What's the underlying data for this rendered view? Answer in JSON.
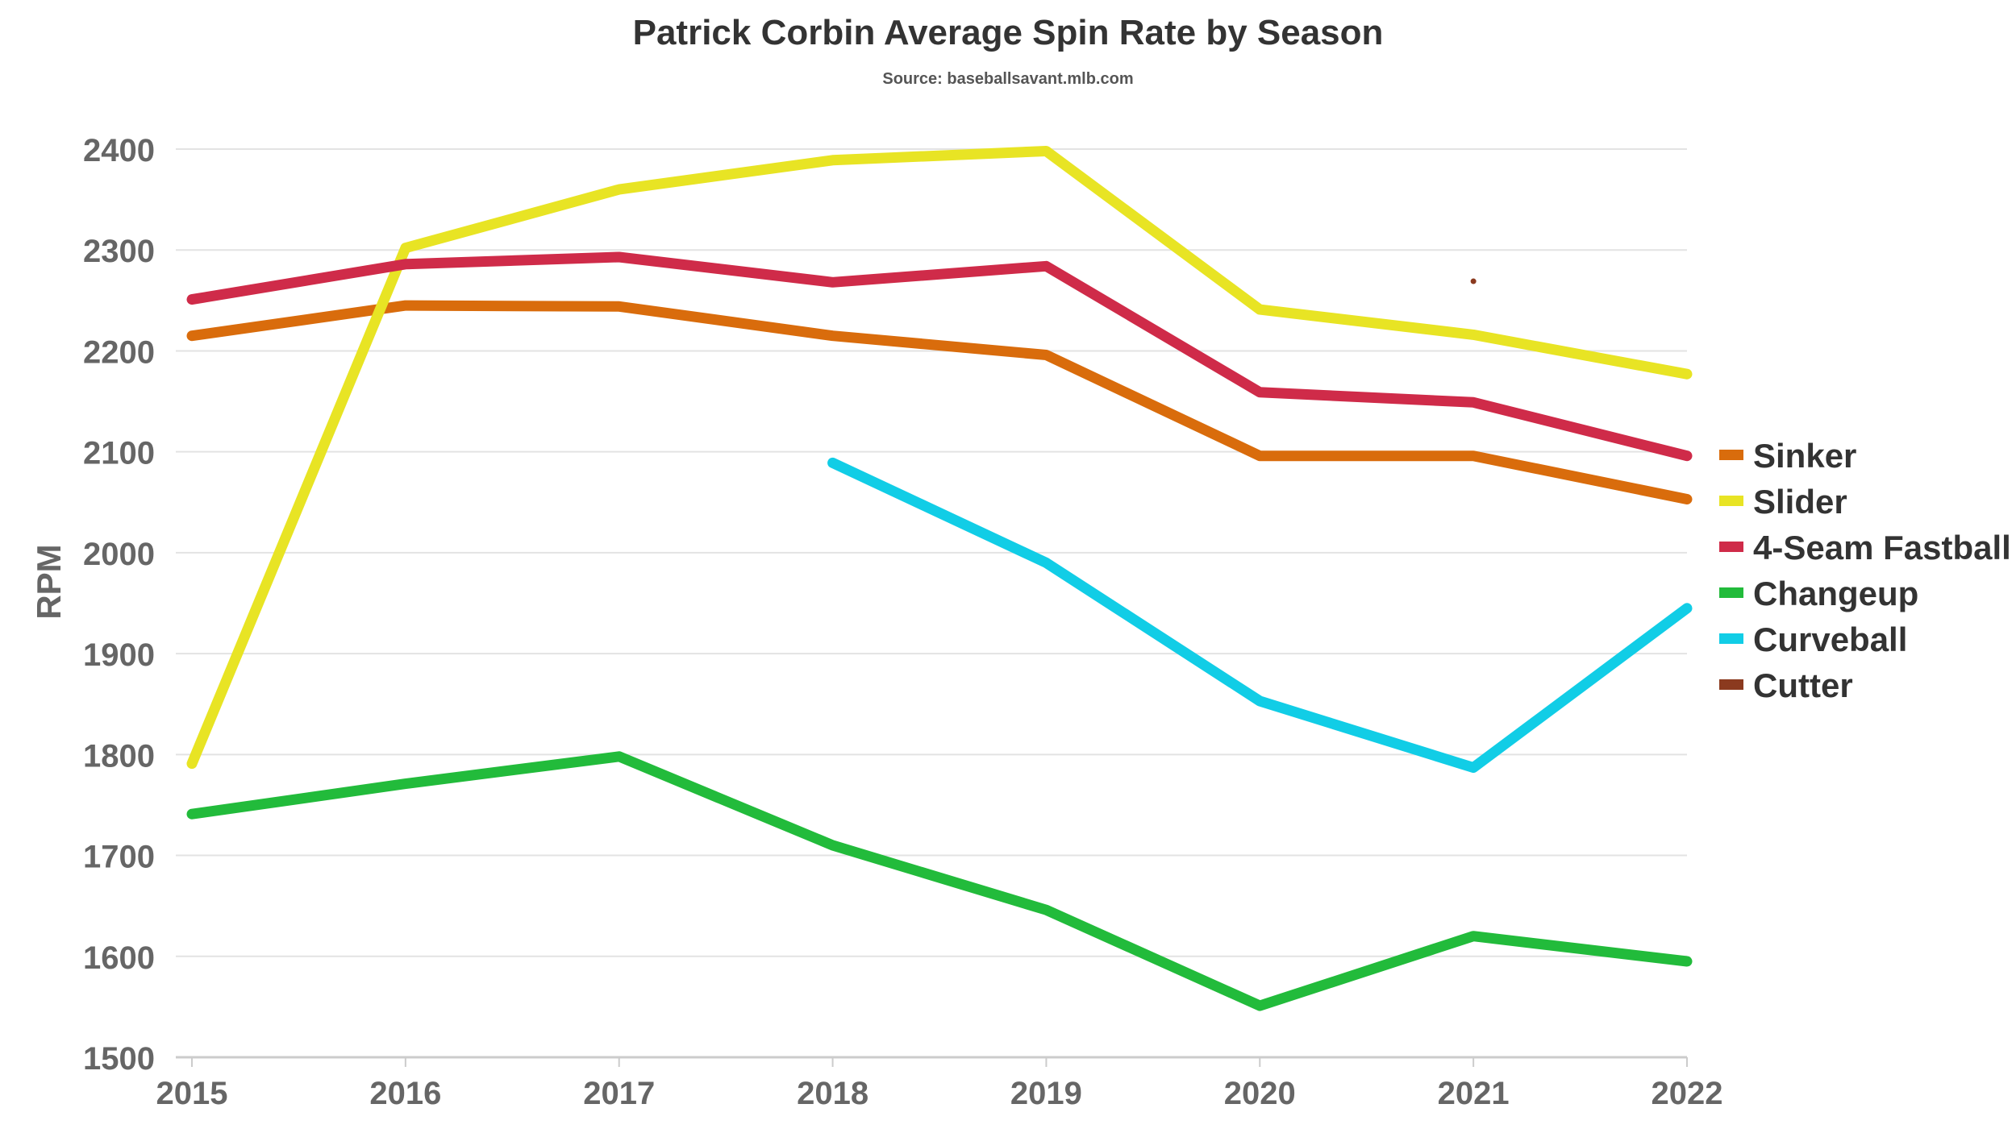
{
  "chart_data": {
    "type": "line",
    "title": "Patrick Corbin Average Spin Rate by Season",
    "subtitle": "Source: baseballsavant.mlb.com",
    "xlabel": "",
    "ylabel": "RPM",
    "x": [
      2015,
      2016,
      2017,
      2018,
      2019,
      2020,
      2021,
      2022
    ],
    "ylim": [
      1500,
      2400
    ],
    "yticks": [
      1500,
      1600,
      1700,
      1800,
      1900,
      2000,
      2100,
      2200,
      2300,
      2400
    ],
    "grid": true,
    "legend_position": "right",
    "series": [
      {
        "name": "Sinker",
        "color": "#d96c0c",
        "values": [
          2215,
          2245,
          2244,
          2215,
          2196,
          2096,
          2096,
          2053
        ]
      },
      {
        "name": "Slider",
        "color": "#e8e424",
        "values": [
          1791,
          2302,
          2360,
          2389,
          2398,
          2241,
          2216,
          2177
        ]
      },
      {
        "name": "4-Seam Fastball",
        "color": "#cf2b49",
        "values": [
          2251,
          2286,
          2293,
          2268,
          2284,
          2159,
          2149,
          2096
        ]
      },
      {
        "name": "Changeup",
        "color": "#22bb3b",
        "values": [
          1741,
          1771,
          1798,
          1710,
          1646,
          1551,
          1620,
          1595
        ]
      },
      {
        "name": "Curveball",
        "color": "#11cde6",
        "values": [
          null,
          null,
          null,
          2089,
          1990,
          1853,
          1787,
          1945
        ]
      },
      {
        "name": "Cutter",
        "color": "#8b3a1f",
        "values": [
          null,
          null,
          null,
          null,
          null,
          null,
          2269,
          null
        ]
      }
    ]
  }
}
